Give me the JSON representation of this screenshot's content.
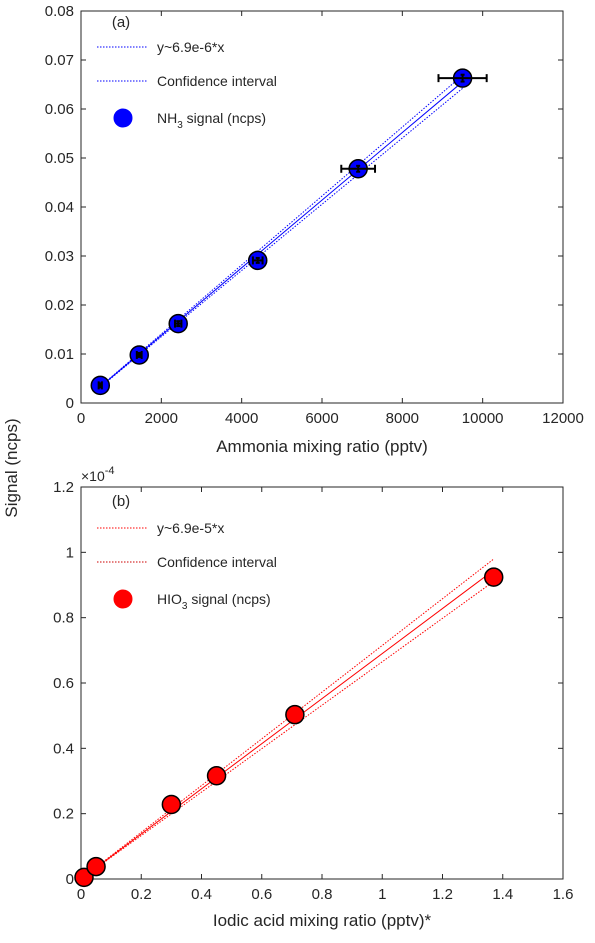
{
  "shared": {
    "ylabel": "Signal (ncps)"
  },
  "chart_data": [
    {
      "type": "scatter",
      "panel": "(a)",
      "xlabel": "Ammonia mixing ratio (pptv)",
      "ylabel": "Signal (ncps)",
      "xlim": [
        0,
        12000
      ],
      "ylim": [
        0,
        0.08
      ],
      "xticks": [
        0,
        2000,
        4000,
        6000,
        8000,
        10000,
        12000
      ],
      "xtick_labels": [
        "0",
        "2000",
        "4000",
        "6000",
        "8000",
        "10000",
        "12000"
      ],
      "yticks": [
        0,
        0.01,
        0.02,
        0.03,
        0.04,
        0.05,
        0.06,
        0.07,
        0.08
      ],
      "ytick_labels": [
        "0",
        "0.01",
        "0.02",
        "0.03",
        "0.04",
        "0.05",
        "0.06",
        "0.07",
        "0.08"
      ],
      "exponent_label": "",
      "grid": false,
      "legend_position": "top-left",
      "color": "#0000ff",
      "fit": {
        "label": "y~6.9e-6*x",
        "slope": 6.9e-06,
        "x_range": [
          480,
          9500
        ]
      },
      "confidence": {
        "label": "Confidence interval",
        "lower_slope": 6.76e-06,
        "upper_slope": 7.04e-06
      },
      "series": [
        {
          "name_main": "NH",
          "name_sub": "3",
          "name_rest": " signal (ncps)",
          "x": [
            480,
            1450,
            2420,
            4400,
            6900,
            9500
          ],
          "y": [
            0.0036,
            0.0098,
            0.0162,
            0.0291,
            0.0478,
            0.0663
          ],
          "xerr": [
            40,
            60,
            80,
            120,
            420,
            600
          ],
          "yerr": [
            0.0004,
            0.0004,
            0.0005,
            0.0005,
            0.0006,
            0.0007
          ]
        }
      ]
    },
    {
      "type": "scatter",
      "panel": "(b)",
      "xlabel": "Iodic acid mixing ratio (pptv)*",
      "ylabel": "Signal (ncps)",
      "xlim": [
        0,
        1.6
      ],
      "ylim": [
        0,
        1.2
      ],
      "xticks": [
        0,
        0.2,
        0.4,
        0.6,
        0.8,
        1.0,
        1.2,
        1.4,
        1.6
      ],
      "xtick_labels": [
        "0",
        "0.2",
        "0.4",
        "0.6",
        "0.8",
        "1",
        "1.2",
        "1.4",
        "1.6"
      ],
      "yticks": [
        0,
        0.2,
        0.4,
        0.6,
        0.8,
        1.0,
        1.2
      ],
      "ytick_labels": [
        "0",
        "0.2",
        "0.4",
        "0.6",
        "0.8",
        "1",
        "1.2"
      ],
      "exponent_label": "×10",
      "exponent_power": "-4",
      "grid": false,
      "legend_position": "top-left",
      "color": "#ff0000",
      "fit": {
        "label": "y~6.9e-5*x",
        "slope": 0.69,
        "x_range": [
          0.01,
          1.37
        ]
      },
      "confidence": {
        "label": "Confidence interval",
        "lower_slope": 0.665,
        "upper_slope": 0.715
      },
      "series": [
        {
          "name_main": "HIO",
          "name_sub": "3",
          "name_rest": " signal (ncps)",
          "x": [
            0.01,
            0.05,
            0.3,
            0.45,
            0.71,
            1.37
          ],
          "y": [
            0.005,
            0.038,
            0.228,
            0.316,
            0.503,
            0.924
          ],
          "xerr": [],
          "yerr": []
        }
      ]
    }
  ]
}
